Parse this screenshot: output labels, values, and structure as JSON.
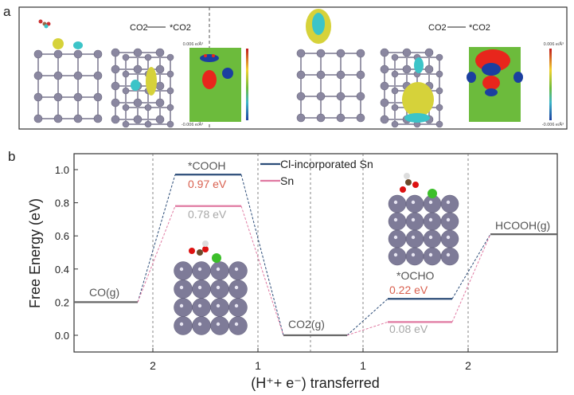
{
  "panel_a": {
    "label": "a",
    "left": {
      "reaction_from": "CO2",
      "reaction_to": "*CO2",
      "scale_max": "0.006 e/Å³",
      "scale_min": "-0.006 e/Å³"
    },
    "right": {
      "reaction_from": "CO2",
      "reaction_to": "*CO2",
      "scale_max": "0.006 e/Å³",
      "scale_min": "-0.006 e/Å³"
    }
  },
  "chart_data": {
    "type": "line",
    "panel_label": "b",
    "ylabel": "Free Energy (eV)",
    "xlabel": "(H⁺+ e⁻) transferred",
    "ylim": [
      -0.1,
      1.12
    ],
    "yticks": [
      "0.0",
      "0.2",
      "0.4",
      "0.6",
      "0.8",
      "1.0"
    ],
    "xticks": [
      "2",
      "1",
      "1",
      "2"
    ],
    "grid": "vertical dashed",
    "legend_placement": "top-center",
    "states": [
      "CO(g)",
      "*COOH",
      "CO2(g)",
      "*OCHO",
      "HCOOH(g)"
    ],
    "series": [
      {
        "name": "Cl-incorporated Sn",
        "color": "#2b4c78",
        "values": [
          0.2,
          0.97,
          0.0,
          0.22,
          0.61
        ]
      },
      {
        "name": "Sn",
        "color": "#e07aa2",
        "values": [
          0.2,
          0.78,
          0.0,
          0.08,
          0.61
        ]
      }
    ],
    "annotations": {
      "cooh_cl": "0.97 eV",
      "cooh_sn": "0.78 eV",
      "ocho_cl": "0.22 eV",
      "ocho_sn": "0.08 eV"
    },
    "colors": {
      "shared_level": "#666666",
      "highlight_label": "#d9604f",
      "muted_label": "#a8a8a8"
    }
  }
}
